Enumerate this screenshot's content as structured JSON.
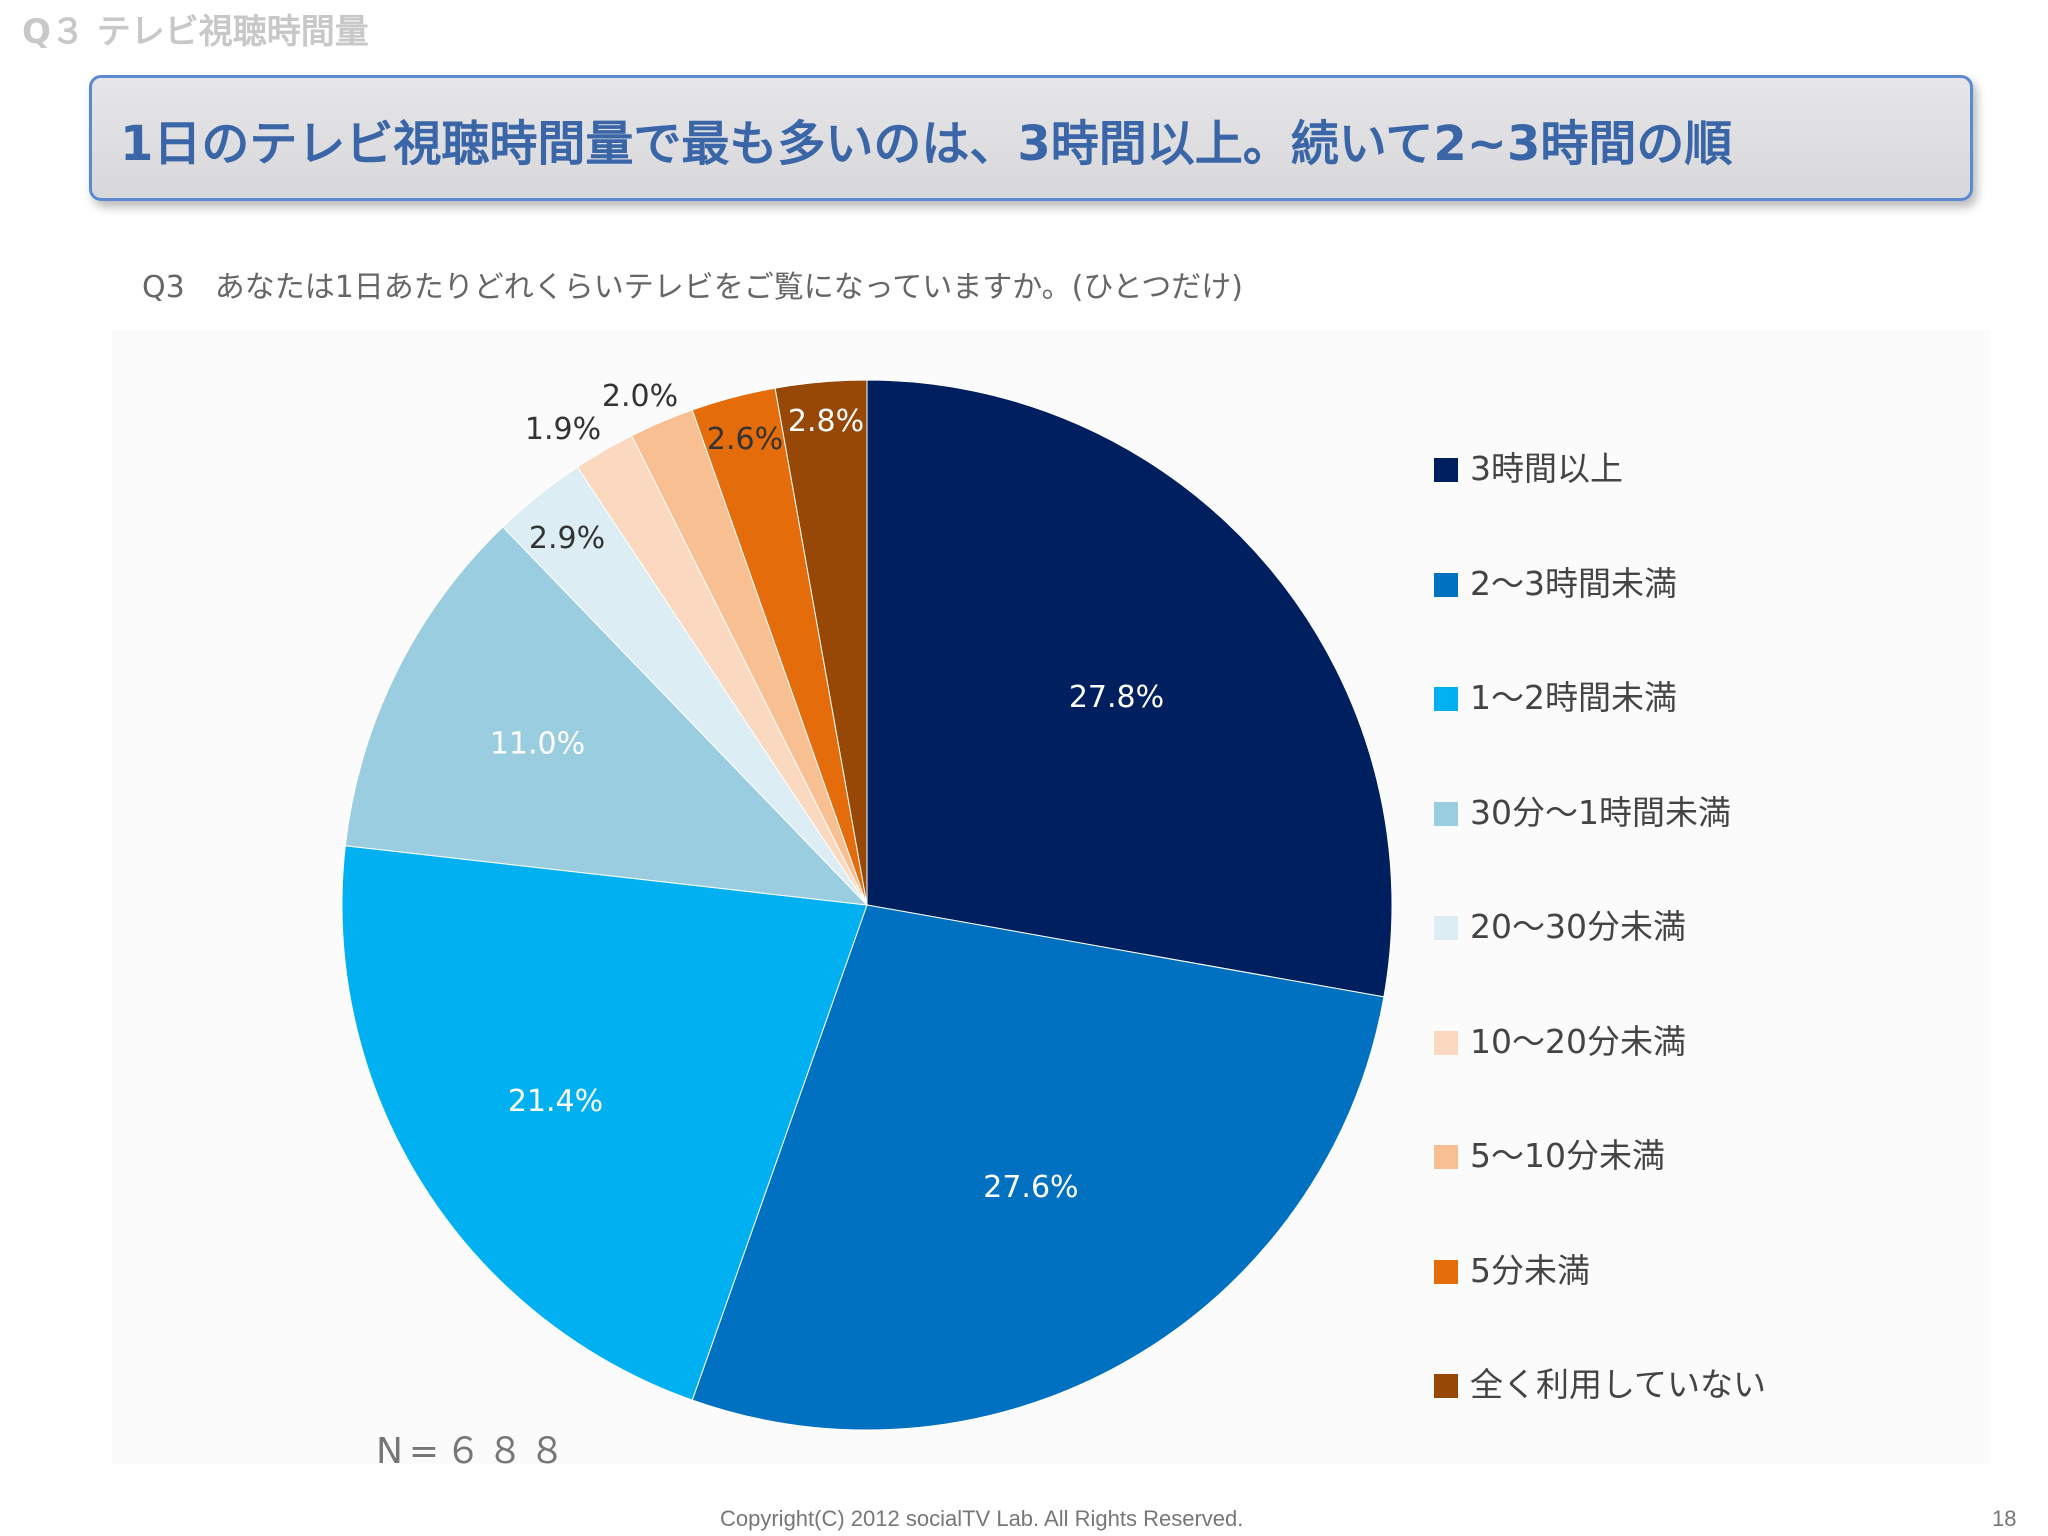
{
  "slide": {
    "section_label": "Q３ テレビ視聴時間量",
    "headline": "1日のテレビ視聴時間量で最も多いのは、3時間以上。続いて2~3時間の順",
    "question": "Q3　あなたは1日あたりどれくらいテレビをご覧になっていますか。(ひとつだけ)",
    "sample_size": "N=６８８",
    "footer": "Copyright(C) 2012 socialTV Lab. All Rights Reserved.",
    "page_number": "18"
  },
  "chart_data": {
    "type": "pie",
    "title": "",
    "start_angle_deg": 0,
    "direction": "clockwise",
    "legend_position": "right",
    "slices": [
      {
        "label": "3時間以上",
        "value": 27.8,
        "value_label": "27.8%",
        "color": "#001f5f",
        "label_color": "#ffffff"
      },
      {
        "label": "2～3時間未満",
        "value": 27.6,
        "value_label": "27.6%",
        "color": "#0070c0",
        "label_color": "#ffffff"
      },
      {
        "label": "1～2時間未満",
        "value": 21.4,
        "value_label": "21.4%",
        "color": "#00b0f0",
        "label_color": "#ffffff"
      },
      {
        "label": "30分～1時間未満",
        "value": 11.0,
        "value_label": "11.0%",
        "color": "#9bcde0",
        "label_color": "#ffffff"
      },
      {
        "label": "20～30分未満",
        "value": 2.9,
        "value_label": "2.9%",
        "color": "#ddedf4",
        "label_color": "#333333"
      },
      {
        "label": "10～20分未満",
        "value": 1.9,
        "value_label": "1.9%",
        "color": "#fad9c0",
        "label_color": "#333333"
      },
      {
        "label": "5～10分未満",
        "value": 2.0,
        "value_label": "2.0%",
        "color": "#f8bf93",
        "label_color": "#333333"
      },
      {
        "label": "5分未満",
        "value": 2.6,
        "value_label": "2.6%",
        "color": "#e46c0a",
        "label_color": "#333333"
      },
      {
        "label": "全く利用していない",
        "value": 2.8,
        "value_label": "2.8%",
        "color": "#974706",
        "label_color": "#ffffff"
      }
    ]
  }
}
